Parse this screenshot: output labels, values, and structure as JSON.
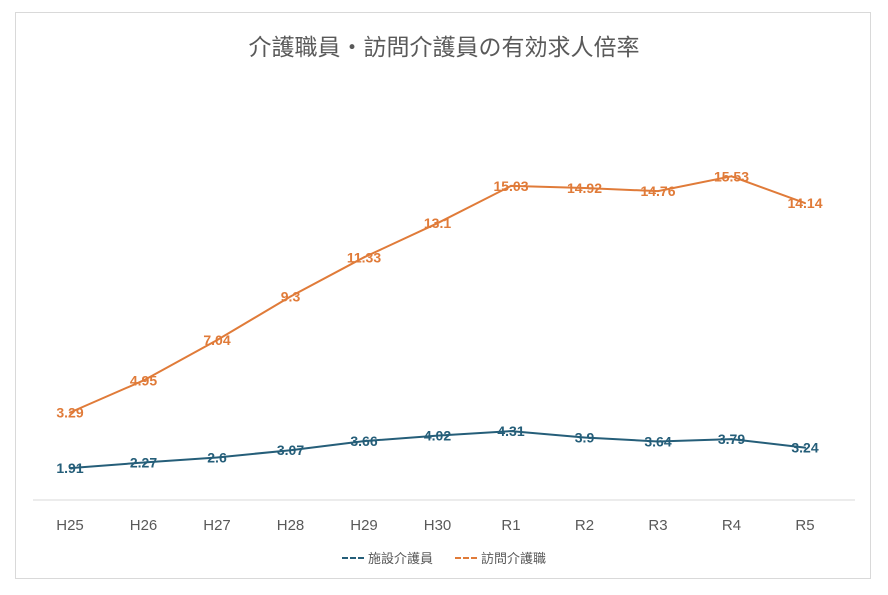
{
  "chart_data": {
    "type": "line",
    "title": "介護職員・訪問介護員の有効求人倍率",
    "categories": [
      "H25",
      "H26",
      "H27",
      "H28",
      "H29",
      "H30",
      "R1",
      "R2",
      "R3",
      "R4",
      "R5"
    ],
    "series": [
      {
        "name": "施設介護員",
        "color": "#255e79",
        "values": [
          1.91,
          2.27,
          2.6,
          3.07,
          3.66,
          4.02,
          4.31,
          3.9,
          3.64,
          3.79,
          3.24
        ]
      },
      {
        "name": "訪問介護職",
        "color": "#e07b39",
        "values": [
          3.29,
          4.95,
          7.04,
          9.3,
          11.33,
          13.1,
          15.03,
          14.92,
          14.76,
          15.53,
          14.14
        ]
      }
    ],
    "xlabel": "",
    "ylabel": "",
    "grid": false,
    "data_labels": true,
    "legend": "bottom"
  }
}
